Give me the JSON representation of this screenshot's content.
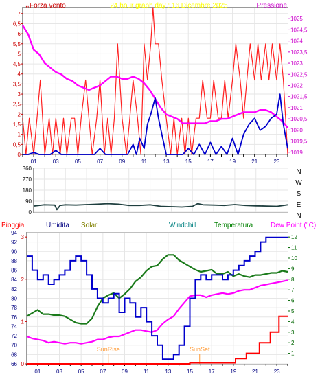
{
  "colors": {
    "wind": "#ff2020",
    "gust": "#0000cc",
    "pressure": "#ff00ff",
    "wind_dir": "#1f3f3f",
    "humidity": "#0000cc",
    "temperature": "#1a7a1a",
    "dew_point": "#ff00ff",
    "rain": "#ff0000",
    "sun_markers": "#ff9933",
    "tick": "#000080",
    "frame": "#9a9a9a"
  },
  "chart_data": [
    {
      "type": "line",
      "title": "24 hour graph day : 16 Dicembre 2025",
      "title_color": "#ffff00",
      "left_label": "Forza vento",
      "left_label_prefix": ",,",
      "right_label": "Pressione",
      "x_ticks": [
        "01",
        "03",
        "05",
        "07",
        "09",
        "11",
        "13",
        "15",
        "17",
        "19",
        "21",
        "23"
      ],
      "x_range": [
        0,
        24
      ],
      "y_left_ticks": [
        "0",
        "0,5",
        "1",
        "1,5",
        "2",
        "2,5",
        "3",
        "3,5",
        "4",
        "4,5",
        "5",
        "5,5",
        "6",
        "6,5",
        "7"
      ],
      "y_left_range": [
        0,
        7.3
      ],
      "y_right_ticks": [
        "1019",
        "1019,5",
        "1020",
        "1020,5",
        "1021",
        "1021,5",
        "1022",
        "1022,5",
        "1023",
        "1023,5",
        "1024",
        "1024,5",
        "1025"
      ],
      "y_right_range": [
        1018.9,
        1025.5
      ],
      "grid": true,
      "series": [
        {
          "name": "Forza vento",
          "axis": "left",
          "type": "spiky",
          "x": [
            0,
            0.3,
            0.6,
            1.0,
            1.3,
            1.6,
            2.0,
            2.4,
            2.7,
            3.0,
            3.4,
            3.7,
            4.0,
            4.4,
            4.7,
            5.0,
            5.3,
            5.7,
            6.0,
            6.3,
            6.7,
            7.0,
            7.4,
            7.7,
            8.0,
            8.3,
            8.6,
            9.0,
            9.4,
            9.7,
            10.0,
            10.4,
            10.7,
            11.0,
            11.3,
            11.6,
            11.8,
            12.0,
            12.3,
            12.6,
            13.0,
            13.4,
            13.7,
            14.0,
            14.4,
            14.7,
            15.0,
            15.3,
            15.7,
            16.0,
            16.3,
            16.7,
            17.0,
            17.3,
            17.7,
            18.0,
            18.3,
            18.6,
            19.0,
            19.3,
            19.7,
            20.0,
            20.3,
            20.6,
            21.0,
            21.3,
            21.6,
            22.0,
            22.3,
            22.6,
            23.0,
            23.3,
            23.6,
            24.0
          ],
          "y": [
            1.8,
            0,
            1.8,
            0,
            1.8,
            3.7,
            0,
            1.8,
            0,
            1.8,
            0,
            1.8,
            0,
            1.8,
            1.8,
            0,
            1.8,
            3.7,
            1.8,
            0,
            1.8,
            3.7,
            0,
            1.8,
            0,
            1.8,
            5.5,
            1.8,
            0,
            1.8,
            3.7,
            1.8,
            0,
            5.5,
            3.7,
            5.5,
            7.3,
            5.5,
            5.5,
            3.7,
            1.8,
            0,
            1.8,
            0,
            1.8,
            0,
            1.8,
            0,
            1.8,
            1.8,
            3.7,
            1.8,
            1.8,
            3.7,
            1.8,
            1.8,
            3.7,
            1.8,
            3.7,
            5.5,
            3.7,
            1.8,
            3.7,
            5.5,
            3.7,
            5.5,
            3.7,
            5.5,
            3.7,
            5.5,
            3.7,
            5.5,
            3.7,
            0
          ]
        },
        {
          "name": "Raffica",
          "axis": "left",
          "x": [
            0,
            0.5,
            1,
            1.5,
            2,
            2.5,
            3,
            3.5,
            4,
            4.5,
            5,
            5.5,
            6,
            6.5,
            7,
            7.5,
            8,
            8.5,
            9,
            9.5,
            10,
            10.3,
            10.6,
            11,
            11.3,
            11.6,
            12,
            12.3,
            12.6,
            13,
            13.5,
            14,
            14.5,
            15,
            15.5,
            16,
            16.5,
            17,
            17.5,
            18,
            18.5,
            19,
            19.5,
            20,
            20.5,
            21,
            21.5,
            22,
            22.5,
            23,
            23.3,
            23.6,
            24
          ],
          "y": [
            0,
            0,
            0.1,
            0,
            0,
            0,
            0.2,
            0,
            0,
            0,
            0,
            0,
            0,
            0,
            0.3,
            0,
            0,
            0,
            0,
            0,
            0.5,
            0,
            0.8,
            0.3,
            1.5,
            2.0,
            2.8,
            1.8,
            1.0,
            0,
            0,
            0,
            0,
            0.3,
            0,
            0.5,
            0,
            0.6,
            0,
            0.4,
            0,
            0.8,
            0,
            1.0,
            1.5,
            1.8,
            1.2,
            1.4,
            1.8,
            2.0,
            3.0,
            1.5,
            0.3
          ]
        },
        {
          "name": "Pressione",
          "axis": "right",
          "x": [
            0,
            0.5,
            1,
            1.5,
            2,
            2.5,
            3,
            3.5,
            4,
            4.5,
            5,
            5.5,
            6,
            6.5,
            7,
            7.5,
            8,
            8.5,
            9,
            9.5,
            10,
            10.5,
            11,
            11.5,
            12,
            12.5,
            13,
            13.5,
            14,
            14.5,
            15,
            15.5,
            16,
            16.5,
            17,
            17.5,
            18,
            18.5,
            19,
            19.5,
            20,
            20.5,
            21,
            21.5,
            22,
            22.5,
            23,
            23.5,
            24
          ],
          "y": [
            1024.7,
            1024.3,
            1023.6,
            1023.4,
            1023.0,
            1022.8,
            1022.6,
            1022.5,
            1022.3,
            1022.2,
            1022.0,
            1021.9,
            1021.8,
            1021.9,
            1022.0,
            1022.2,
            1022.4,
            1022.4,
            1022.3,
            1022.3,
            1022.4,
            1022.3,
            1022.1,
            1021.8,
            1021.4,
            1021.0,
            1020.7,
            1020.6,
            1020.5,
            1020.3,
            1020.3,
            1020.3,
            1020.3,
            1020.3,
            1020.4,
            1020.4,
            1020.5,
            1020.5,
            1020.6,
            1020.7,
            1020.8,
            1020.8,
            1020.8,
            1020.9,
            1020.9,
            1020.8,
            1020.6,
            1020.4,
            1020.1
          ]
        }
      ]
    },
    {
      "type": "line",
      "y_labels_right": [
        "N",
        "W",
        "S",
        "E",
        "N"
      ],
      "y_ticks": [
        "360",
        "270",
        "180",
        "90",
        "0"
      ],
      "y_range": [
        0,
        360
      ],
      "x_range": [
        0,
        24
      ],
      "grid": true,
      "series": [
        {
          "name": "Direzione vento",
          "x": [
            0,
            1,
            2,
            2.2,
            2.5,
            3,
            4,
            5,
            6,
            7,
            8,
            9,
            10,
            11,
            12,
            13,
            14,
            15,
            15.5,
            16,
            17,
            18,
            19,
            20,
            21,
            22,
            23,
            24
          ],
          "y": [
            50,
            60,
            58,
            20,
            55,
            60,
            58,
            62,
            65,
            70,
            65,
            55,
            55,
            60,
            48,
            45,
            42,
            48,
            70,
            60,
            58,
            55,
            62,
            55,
            52,
            50,
            48,
            60
          ]
        }
      ]
    },
    {
      "type": "line",
      "header_labels": [
        {
          "text": "Pioggia",
          "color": "#ff0000"
        },
        {
          "text": "Umidita",
          "color": "#000080"
        },
        {
          "text": "Solar",
          "color": "#808000"
        },
        {
          "text": "Windchill",
          "color": "#008080"
        },
        {
          "text": "Temperatura",
          "color": "#008000"
        },
        {
          "text": "Dew Point (°C)",
          "color": "#ff00ff"
        }
      ],
      "x_ticks": [
        "01",
        "03",
        "05",
        "07",
        "09",
        "11",
        "13",
        "15",
        "17",
        "19",
        "21",
        "23"
      ],
      "x_range": [
        0,
        24
      ],
      "y_left_ticks": [
        "66",
        "68",
        "70",
        "72",
        "74",
        "76",
        "78",
        "80",
        "82",
        "84",
        "86",
        "88",
        "90",
        "92",
        "94"
      ],
      "y_left_range": [
        66,
        94
      ],
      "y_rain_ticks": [
        "0",
        "1",
        "2",
        "3"
      ],
      "y_right_ticks": [
        "1",
        "2",
        "3",
        "4",
        "5",
        "6",
        "7",
        "8",
        "9",
        "10",
        "11",
        "12"
      ],
      "y_right_range": [
        0,
        12.4
      ],
      "annotations": [
        {
          "text": "SunRise",
          "x": 7.5
        },
        {
          "text": "SunSet",
          "x": 15.9
        }
      ],
      "grid": true,
      "series": [
        {
          "name": "Umidita",
          "axis": "left",
          "x": [
            0,
            0.5,
            1,
            1.5,
            2,
            2.5,
            3,
            3.5,
            4,
            4.5,
            5,
            5.5,
            6,
            6.5,
            7,
            7.5,
            8,
            8.5,
            9,
            9.5,
            10,
            10.5,
            11,
            11.5,
            12,
            12.5,
            13,
            13.5,
            14,
            14.5,
            15,
            15.5,
            16,
            16.5,
            17,
            17.5,
            18,
            18.5,
            19,
            19.5,
            20,
            20.5,
            21,
            21.5,
            22,
            22.5,
            23,
            23.5,
            24
          ],
          "y": [
            89,
            86,
            84,
            85,
            83,
            84,
            85,
            86,
            88,
            89,
            88,
            85,
            82,
            80,
            79,
            80,
            81,
            77,
            80,
            79,
            76,
            78,
            75,
            72,
            70,
            67,
            67,
            68,
            70,
            74,
            80,
            84,
            85,
            84,
            85,
            85,
            84,
            85,
            86,
            87,
            88,
            89,
            90,
            92,
            93,
            93,
            93,
            93,
            93
          ]
        },
        {
          "name": "Temperatura",
          "axis": "right",
          "x": [
            0,
            0.5,
            1,
            1.5,
            2,
            2.5,
            3,
            3.5,
            4,
            4.5,
            5,
            5.5,
            6,
            6.5,
            7,
            7.5,
            8,
            8.5,
            9,
            9.5,
            10,
            10.5,
            11,
            11.5,
            12,
            12.5,
            13,
            13.5,
            14,
            14.5,
            15,
            15.5,
            16,
            16.5,
            17,
            17.5,
            18,
            18.5,
            19,
            19.5,
            20,
            20.5,
            21,
            21.5,
            22,
            22.5,
            23,
            23.5,
            24
          ],
          "y": [
            4.5,
            4.8,
            5.1,
            4.7,
            4.7,
            4.6,
            4.6,
            4.5,
            4.2,
            3.9,
            3.8,
            3.8,
            4.3,
            5.4,
            6.2,
            6.5,
            6.7,
            6.2,
            6.6,
            7.1,
            7.8,
            8.2,
            8.8,
            9.2,
            9.3,
            9.9,
            10.3,
            10.3,
            9.8,
            9.5,
            9.2,
            8.9,
            8.7,
            8.8,
            8.9,
            8.5,
            8.5,
            8.7,
            8.3,
            8.5,
            8.3,
            8.2,
            8.4,
            8.4,
            8.5,
            8.6,
            8.6,
            8.8,
            8.7
          ]
        },
        {
          "name": "Dew Point",
          "axis": "right",
          "x": [
            0,
            0.5,
            1,
            1.5,
            2,
            2.5,
            3,
            3.5,
            4,
            4.5,
            5,
            5.5,
            6,
            6.5,
            7,
            7.5,
            8,
            8.5,
            9,
            9.5,
            10,
            10.5,
            11,
            11.5,
            12,
            12.5,
            13,
            13.5,
            14,
            14.5,
            15,
            15.5,
            16,
            16.5,
            17,
            17.5,
            18,
            18.5,
            19,
            19.5,
            20,
            20.5,
            21,
            21.5,
            22,
            22.5,
            23,
            23.5,
            24
          ],
          "y": [
            2.6,
            2.4,
            2.3,
            2.2,
            2.0,
            2.1,
            2.0,
            1.9,
            2.0,
            2.0,
            1.9,
            2.0,
            2.1,
            2.3,
            2.3,
            2.5,
            2.6,
            2.6,
            2.8,
            3.0,
            3.2,
            3.2,
            3.1,
            3.0,
            3.2,
            3.8,
            4.2,
            4.5,
            5.2,
            5.8,
            6.4,
            6.5,
            6.5,
            6.3,
            6.5,
            6.6,
            6.7,
            6.6,
            6.7,
            6.9,
            7.0,
            7.0,
            7.2,
            7.4,
            7.5,
            7.6,
            7.7,
            7.8,
            7.9
          ]
        },
        {
          "name": "Pioggia",
          "axis": "right",
          "step": true,
          "x": [
            0,
            14.8,
            15.0,
            19.0,
            19.2,
            20.0,
            20.2,
            21.0,
            21.4,
            22.0,
            22.4,
            23.0,
            23.2,
            24
          ],
          "y": [
            0,
            0,
            0.1,
            0.1,
            0.5,
            0.5,
            1.0,
            1.0,
            2.0,
            2.0,
            3.0,
            3.0,
            4.5,
            4.5
          ]
        }
      ]
    }
  ]
}
